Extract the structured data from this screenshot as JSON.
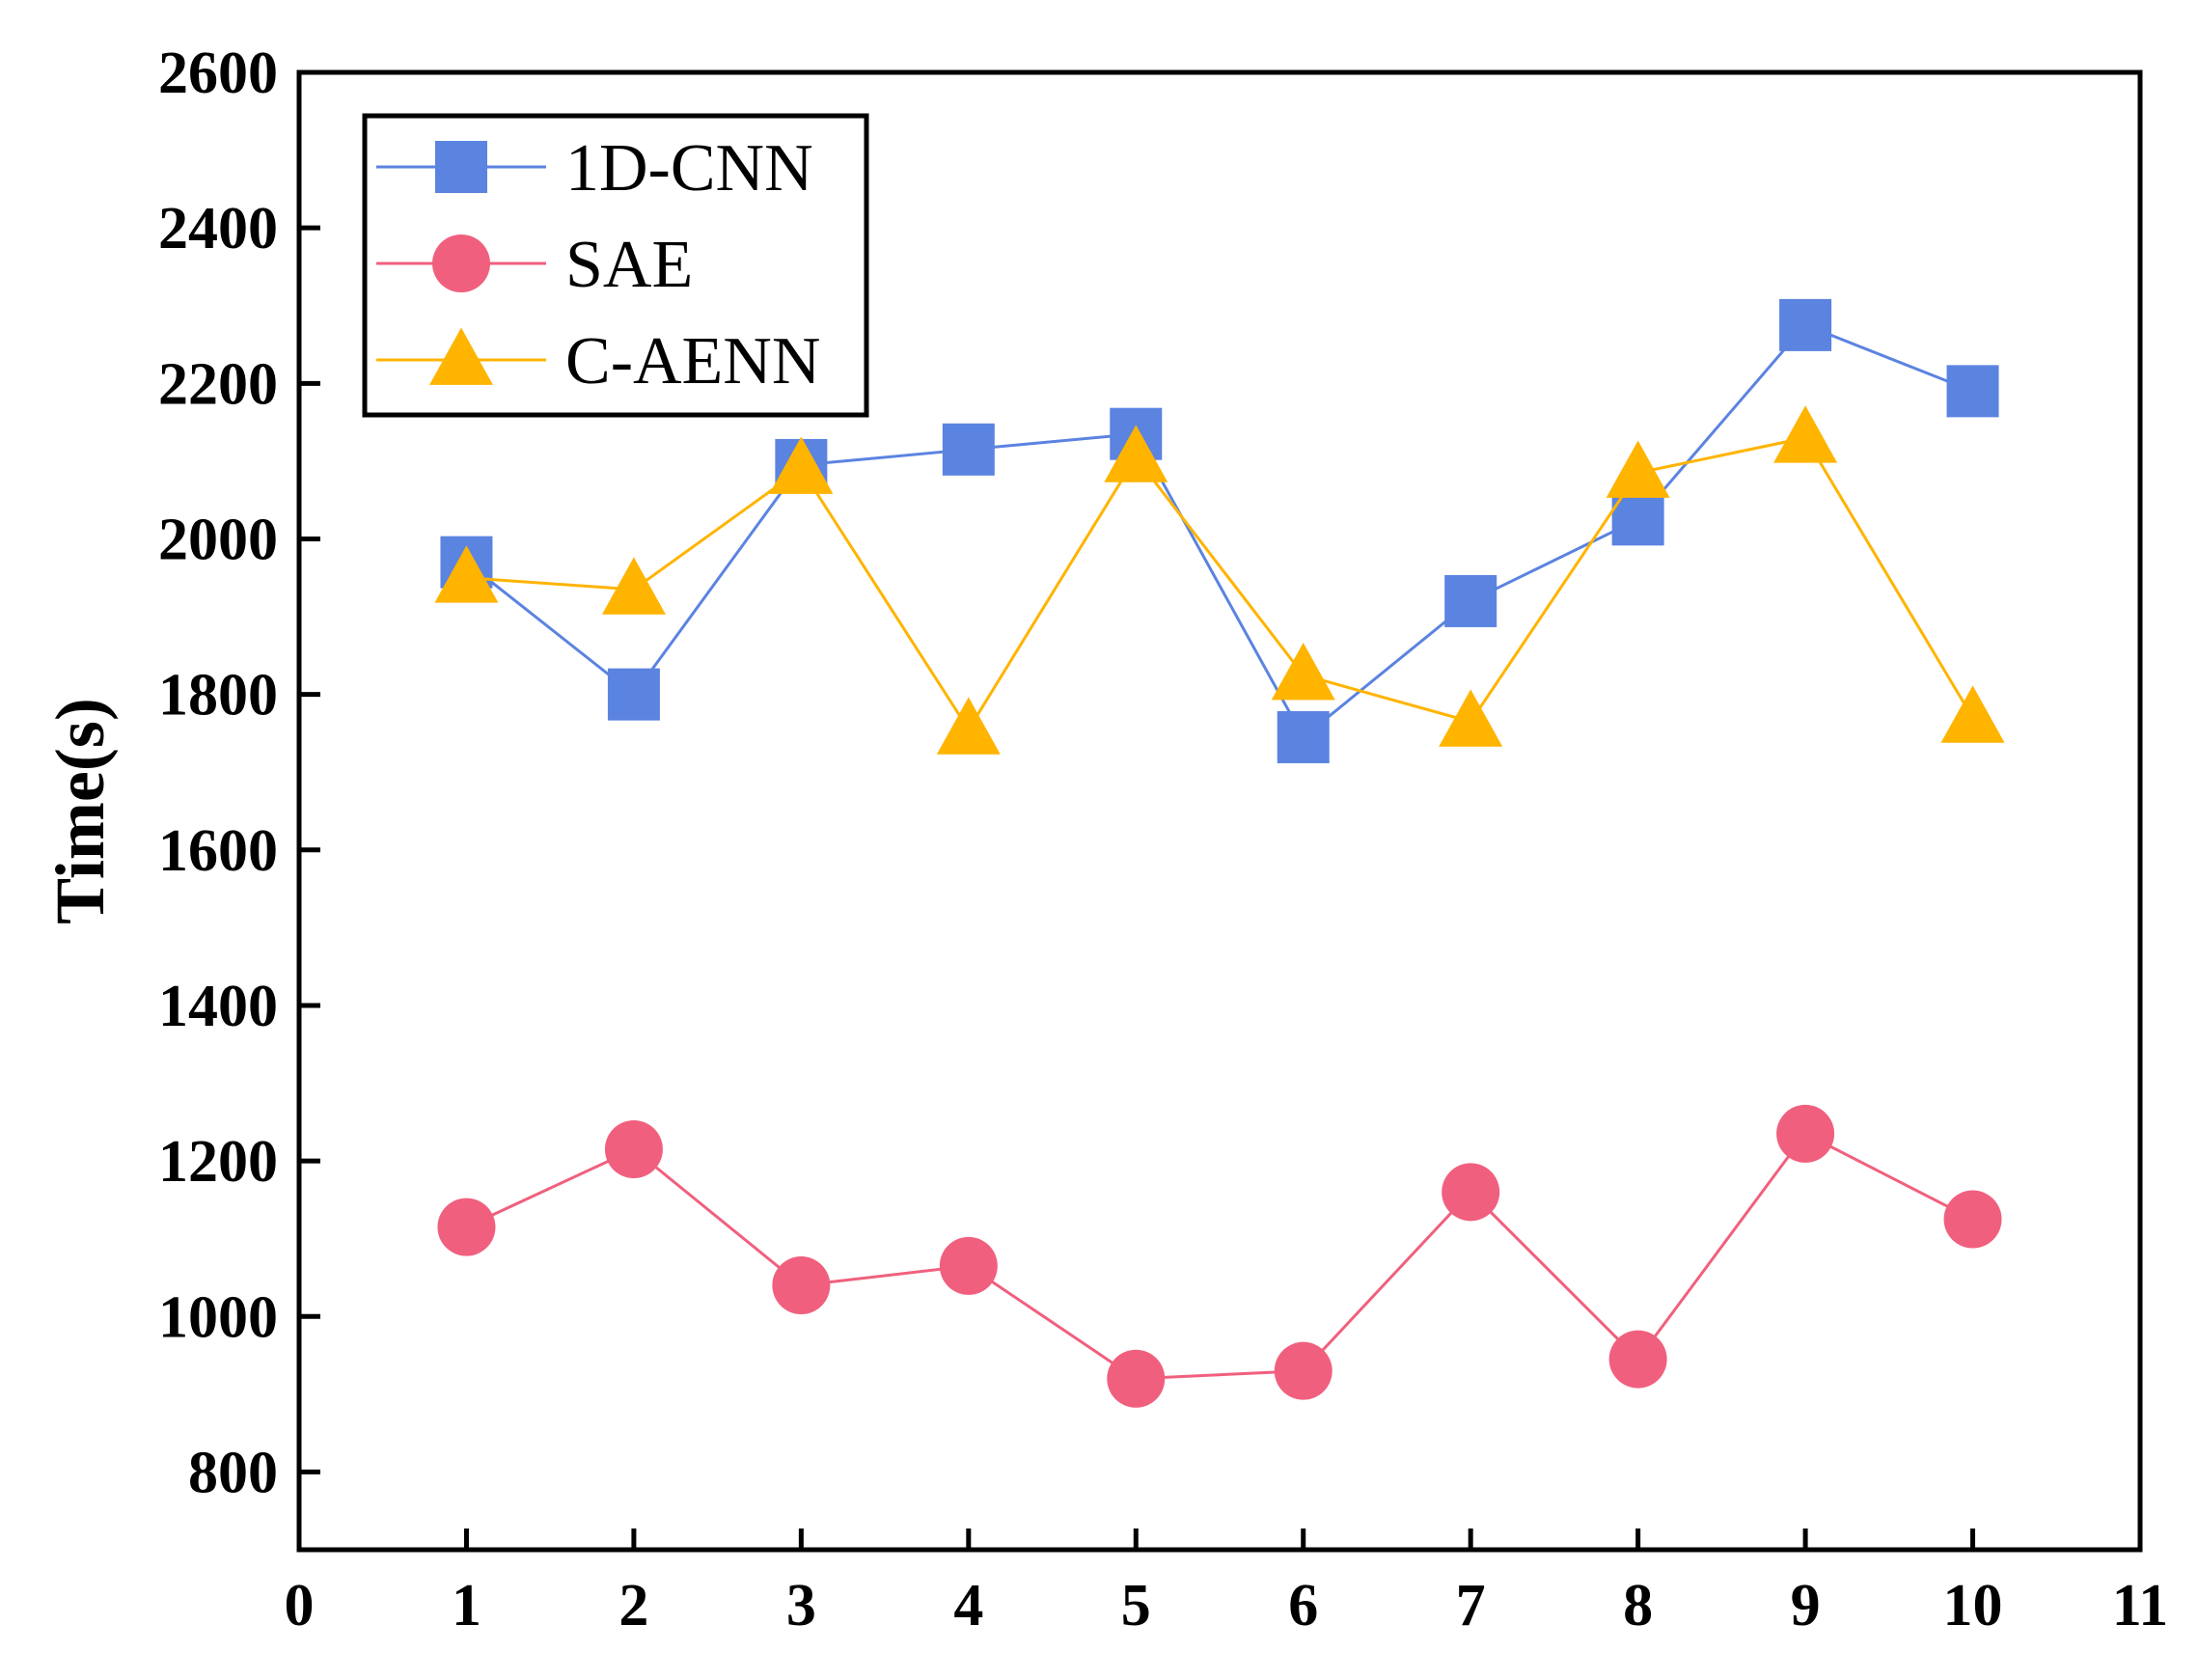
{
  "chart_data": {
    "type": "line",
    "title": "",
    "xlabel": "",
    "ylabel": "Time(s)",
    "xlim": [
      0,
      11
    ],
    "ylim": [
      700,
      2600
    ],
    "xticks": [
      "0",
      "1",
      "2",
      "3",
      "4",
      "5",
      "6",
      "7",
      "8",
      "9",
      "10",
      "11"
    ],
    "yticks": [
      "800",
      "1000",
      "1200",
      "1400",
      "1600",
      "1800",
      "2000",
      "2200",
      "2400",
      "2600"
    ],
    "x": [
      1,
      2,
      3,
      4,
      5,
      6,
      7,
      8,
      9,
      10
    ],
    "series": [
      {
        "name": "1D-CNN",
        "marker": "square",
        "color": "#5B83E0",
        "values": [
          1970,
          1800,
          2095,
          2115,
          2135,
          1745,
          1920,
          2025,
          2275,
          2190
        ]
      },
      {
        "name": "SAE",
        "marker": "circle",
        "color": "#F0607E",
        "values": [
          1115,
          1215,
          1040,
          1065,
          920,
          930,
          1160,
          945,
          1235,
          1125
        ]
      },
      {
        "name": "C-AENN",
        "marker": "triangle",
        "color": "#FFB400",
        "values": [
          1950,
          1935,
          2090,
          1755,
          2105,
          1825,
          1765,
          2085,
          2130,
          1770
        ]
      }
    ],
    "grid": false,
    "legend_position": "top-left"
  }
}
